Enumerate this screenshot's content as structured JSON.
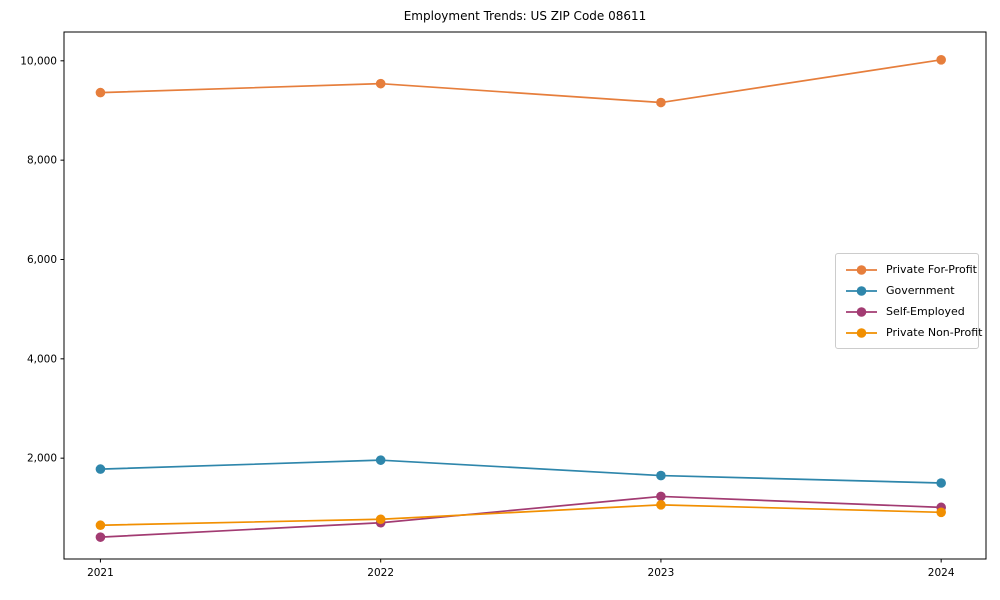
{
  "title": "Employment Trends: US ZIP Code 08611",
  "chart_data": {
    "type": "line",
    "title": "Employment Trends: US ZIP Code 08611",
    "xlabel": "",
    "ylabel": "",
    "x": [
      2021,
      2022,
      2023,
      2024
    ],
    "xticklabels": [
      "2021",
      "2022",
      "2023",
      "2024"
    ],
    "yticks": [
      2000,
      4000,
      6000,
      8000,
      10000
    ],
    "yticklabels": [
      "2,000",
      "4,000",
      "6,000",
      "8,000",
      "10,000"
    ],
    "xlim": [
      2020.87,
      2024.16
    ],
    "ylim": [
      -30,
      10580
    ],
    "grid": false,
    "legend_position": "center-right",
    "background_color": "#ffffff",
    "axis_color": "#000000",
    "series": [
      {
        "name": "Private For-Profit",
        "color": "#E67E3C",
        "values": [
          9360,
          9540,
          9160,
          10020
        ]
      },
      {
        "name": "Government",
        "color": "#2E86AB",
        "values": [
          1780,
          1960,
          1650,
          1500
        ]
      },
      {
        "name": "Self-Employed",
        "color": "#A23B72",
        "values": [
          410,
          700,
          1230,
          1010
        ]
      },
      {
        "name": "Private Non-Profit",
        "color": "#F18F01",
        "values": [
          650,
          770,
          1060,
          910
        ]
      }
    ]
  }
}
